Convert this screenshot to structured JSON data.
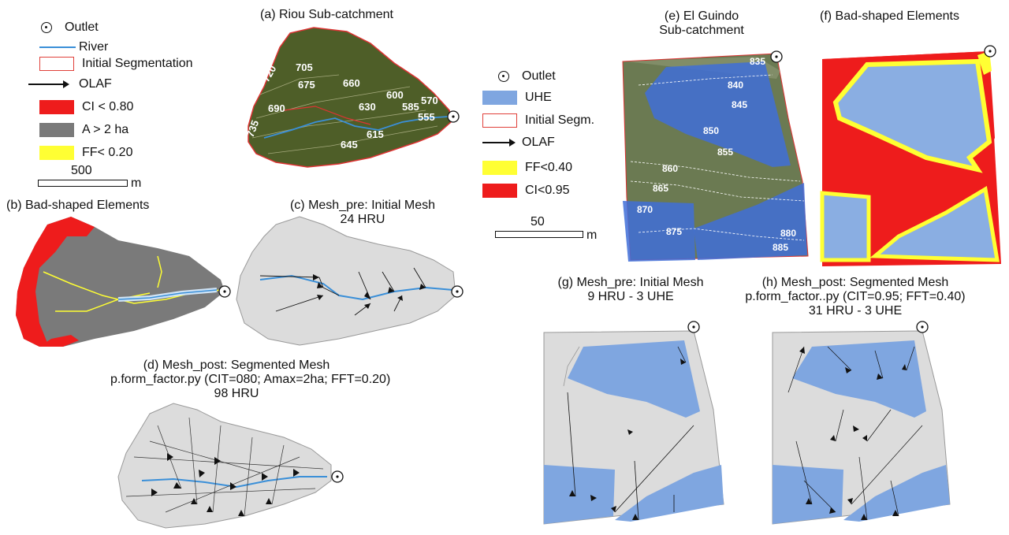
{
  "legend_left": {
    "outlet": "Outlet",
    "river": "River",
    "initial_segmentation": "Initial Segmentation",
    "olaf": "OLAF",
    "ci": "CI < 0.80",
    "area": "A > 2 ha",
    "ff": "FF< 0.20",
    "scale_value": "500",
    "scale_unit": "m"
  },
  "legend_right": {
    "outlet": "Outlet",
    "uhe": "UHE",
    "initial_segm": "Initial Segm.",
    "olaf": "OLAF",
    "ff": "FF<0.40",
    "ci": "CI<0.95",
    "scale_value": "50",
    "scale_unit": "m"
  },
  "panels": {
    "a": {
      "title": "(a) Riou Sub-catchment",
      "contours": [
        "720",
        "705",
        "675",
        "660",
        "690",
        "630",
        "600",
        "585",
        "570",
        "555",
        "615",
        "645",
        "735"
      ]
    },
    "b": {
      "title": "(b) Bad-shaped Elements"
    },
    "c": {
      "title_line1": "(c) Mesh_pre: Initial Mesh",
      "title_line2": "24 HRU"
    },
    "d": {
      "title_line1": "(d) Mesh_post: Segmented Mesh",
      "title_line2": "p.form_factor.py (CIT=080; Amax=2ha; FFT=0.20)",
      "title_line3": "98 HRU"
    },
    "e": {
      "title_line1": "(e)  El Guindo",
      "title_line2": "Sub-catchment",
      "contours": [
        "835",
        "840",
        "845",
        "850",
        "855",
        "860",
        "865",
        "870",
        "875",
        "880",
        "885"
      ]
    },
    "f": {
      "title": "(f)   Bad-shaped Elements"
    },
    "g": {
      "title_line1": "(g) Mesh_pre: Initial Mesh",
      "title_line2": "9 HRU - 3 UHE"
    },
    "h": {
      "title_line1": "(h) Mesh_post: Segmented Mesh",
      "title_line2": "p.form_factor..py (CIT=0.95; FFT=0.40)",
      "title_line3": "31 HRU - 3 UHE"
    }
  },
  "colors": {
    "river": "#3a8fd8",
    "initial_segmentation": "#e0403a",
    "ci_red": "#ee1c1c",
    "area_grey": "#7a7a7a",
    "ff_yellow": "#ffff33",
    "uhe_blue": "#7fa6e0",
    "mesh_grey": "#dcdcdc"
  }
}
